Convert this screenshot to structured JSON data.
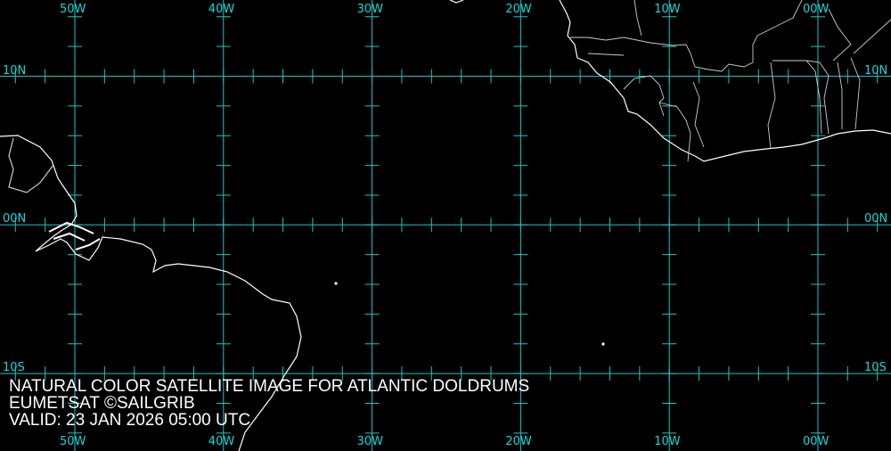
{
  "map": {
    "grid_color": "#19c6c6",
    "coast_color": "#ffffff",
    "longitudes": [
      "50W",
      "40W",
      "30W",
      "20W",
      "10W",
      "00W"
    ],
    "latitudes": [
      "10N",
      "00N",
      "10S"
    ]
  },
  "caption": {
    "line1": "NATURAL COLOR SATELLITE IMAGE FOR ATLANTIC DOLDRUMS",
    "line2": "EUMETSAT ©SAILGRIB",
    "line3": "VALID:  23 JAN 2026 05:00 UTC"
  }
}
